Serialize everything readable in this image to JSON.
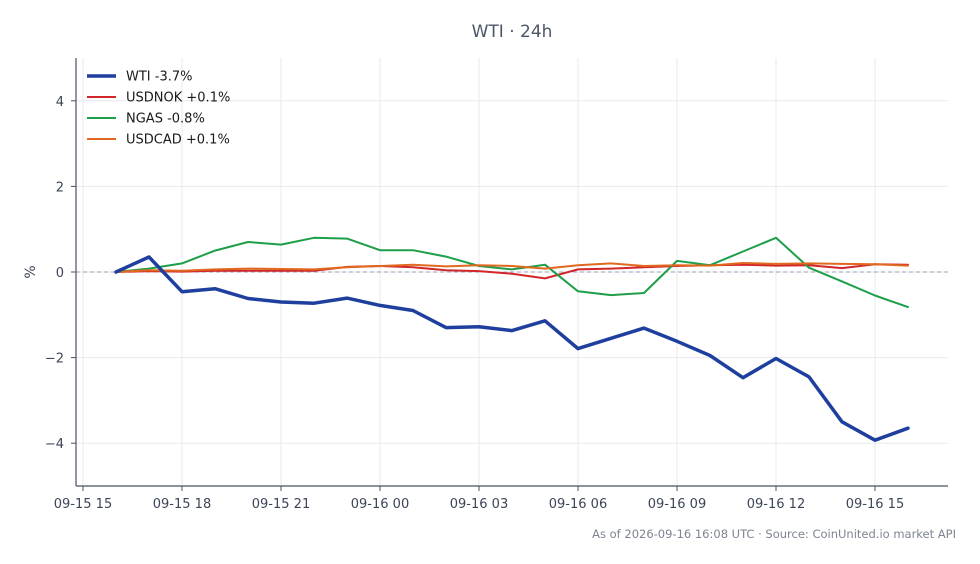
{
  "chart_data": {
    "type": "line",
    "title": "WTI · 24h",
    "xlabel": "",
    "ylabel": "%",
    "x_ticks": [
      "09-15 15",
      "09-15 18",
      "09-15 21",
      "09-16 00",
      "09-16 03",
      "09-16 06",
      "09-16 09",
      "09-16 12",
      "09-16 15"
    ],
    "y_ticks": [
      -4,
      -2,
      0,
      2,
      4
    ],
    "ylim": [
      -5,
      5
    ],
    "x_start": "2026-09-15 16:00",
    "x_step_hours": 1,
    "grid": true,
    "zero_line": true,
    "legend": "top-left",
    "series": [
      {
        "name": "WTI -3.7%",
        "color": "#1f3f9e",
        "emphasis": true,
        "values": [
          0.0,
          0.35,
          -0.46,
          -0.39,
          -0.62,
          -0.7,
          -0.73,
          -0.61,
          -0.78,
          -0.9,
          -1.3,
          -1.28,
          -1.37,
          -1.14,
          -1.79,
          -1.55,
          -1.31,
          -1.62,
          -1.95,
          -2.47,
          -2.02,
          -2.45,
          -3.5,
          -3.93,
          -3.65
        ]
      },
      {
        "name": "USDNOK +0.1%",
        "color": "#d1262a",
        "values": [
          0.0,
          0.02,
          0.01,
          0.03,
          0.03,
          0.03,
          0.03,
          0.12,
          0.14,
          0.11,
          0.04,
          0.02,
          -0.04,
          -0.15,
          0.06,
          0.08,
          0.11,
          0.14,
          0.16,
          0.17,
          0.15,
          0.16,
          0.09,
          0.18,
          0.17
        ]
      },
      {
        "name": "NGAS -0.8%",
        "color": "#1e9e48",
        "values": [
          0.0,
          0.08,
          0.2,
          0.5,
          0.7,
          0.64,
          0.8,
          0.78,
          0.51,
          0.51,
          0.36,
          0.14,
          0.06,
          0.17,
          -0.45,
          -0.54,
          -0.49,
          0.26,
          0.16,
          0.48,
          0.8,
          0.1,
          -0.22,
          -0.55,
          -0.82
        ]
      },
      {
        "name": "USDCAD +0.1%",
        "color": "#e0681f",
        "values": [
          0.0,
          0.04,
          0.03,
          0.06,
          0.08,
          0.07,
          0.06,
          0.11,
          0.14,
          0.17,
          0.13,
          0.16,
          0.14,
          0.08,
          0.16,
          0.2,
          0.14,
          0.16,
          0.15,
          0.21,
          0.19,
          0.2,
          0.19,
          0.18,
          0.15
        ]
      }
    ]
  },
  "footer": {
    "source_text": "As of 2026-09-16 16:08 UTC · Source: CoinUnited.io market API"
  },
  "colors": {
    "axis": "#4a5263",
    "grid": "#e8e9ee",
    "zero_line": "#9aa0b4",
    "text": "#3c4558",
    "title": "#4b5568",
    "footer": "#7d8592"
  }
}
